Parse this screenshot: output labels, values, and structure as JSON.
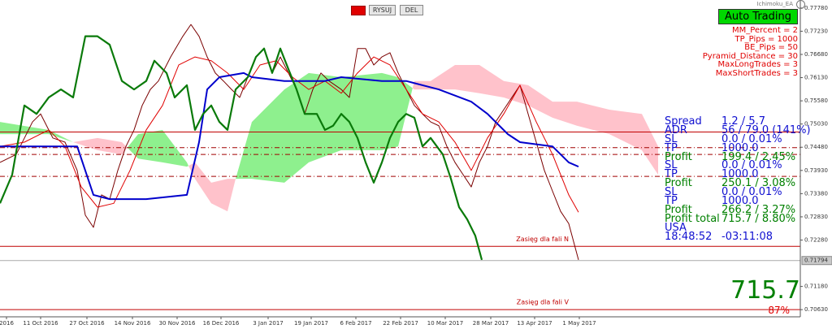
{
  "chart_data": {
    "type": "ichimoku",
    "xlim": [
      0,
      197
    ],
    "ylim": [
      0.7046,
      0.7797
    ],
    "xticks": [
      {
        "value": 1.6,
        "label": "2016"
      },
      {
        "value": 10,
        "label": "11 Oct 2016"
      },
      {
        "value": 21.4,
        "label": "27 Oct 2016"
      },
      {
        "value": 32.6,
        "label": "14 Nov 2016"
      },
      {
        "value": 43.6,
        "label": "30 Nov 2016"
      },
      {
        "value": 54.4,
        "label": "16 Dec 2016"
      },
      {
        "value": 66,
        "label": "3 Jan 2017"
      },
      {
        "value": 76.6,
        "label": "19 Jan 2017"
      },
      {
        "value": 87.6,
        "label": "6 Feb 2017"
      },
      {
        "value": 98.6,
        "label": "22 Feb 2017"
      },
      {
        "value": 109.6,
        "label": "10 Mar 2017"
      },
      {
        "value": 120.8,
        "label": "28 Mar 2017"
      },
      {
        "value": 131.6,
        "label": "13 Apr 2017"
      },
      {
        "value": 142.6,
        "label": "1 May 2017"
      }
    ],
    "yticks": [
      {
        "value": 0.7778,
        "label": "0.77780"
      },
      {
        "value": 0.7723,
        "label": "0.77230"
      },
      {
        "value": 0.7668,
        "label": "0.76680"
      },
      {
        "value": 0.7613,
        "label": "0.76130"
      },
      {
        "value": 0.7558,
        "label": "0.75580"
      },
      {
        "value": 0.7503,
        "label": "0.75030"
      },
      {
        "value": 0.7448,
        "label": "0.74480"
      },
      {
        "value": 0.7393,
        "label": "0.73930"
      },
      {
        "value": 0.7338,
        "label": "0.73380"
      },
      {
        "value": 0.7283,
        "label": "0.72830"
      },
      {
        "value": 0.7228,
        "label": "0.72280"
      },
      {
        "value": 0.7118,
        "label": "0.71180"
      },
      {
        "value": 0.7063,
        "label": "0.70630"
      }
    ],
    "current_price": {
      "value": 0.71794,
      "label": "0.71794",
      "color": "#aaaaaa"
    },
    "cloud": {
      "x": [
        0,
        12,
        18,
        24,
        30,
        34,
        40,
        46,
        48,
        52,
        56,
        58,
        62,
        70,
        76,
        84,
        94,
        98,
        102,
        106,
        112,
        118,
        124,
        130,
        136,
        142,
        150,
        158,
        162
      ],
      "span_a": [
        0.7508,
        0.7489,
        0.746,
        0.7441,
        0.7431,
        0.7479,
        0.7489,
        0.7412,
        0.7373,
        0.7315,
        0.7296,
        0.7373,
        0.7508,
        0.7585,
        0.7624,
        0.7614,
        0.7624,
        0.7614,
        0.7585,
        0.7585,
        0.7585,
        0.7576,
        0.7566,
        0.7547,
        0.7518,
        0.7499,
        0.7479,
        0.7441,
        0.7383
      ],
      "span_b": [
        0.7479,
        0.7479,
        0.746,
        0.747,
        0.746,
        0.7421,
        0.7412,
        0.7402,
        0.7412,
        0.7364,
        0.7373,
        0.7373,
        0.7373,
        0.7364,
        0.7412,
        0.7441,
        0.7441,
        0.745,
        0.7605,
        0.7605,
        0.7643,
        0.7643,
        0.7605,
        0.7595,
        0.7556,
        0.7556,
        0.7537,
        0.7527,
        0.745
      ],
      "up_color": "#8ef08e",
      "down_color": "#ffc2cb"
    },
    "series": [
      {
        "color": "#7a0000",
        "x": [
          0,
          4,
          8,
          10,
          13,
          16,
          19,
          21,
          23,
          25,
          27,
          29,
          31,
          33,
          35,
          37,
          39,
          42,
          45,
          47,
          49,
          51,
          53,
          55,
          57,
          59,
          61,
          63,
          65,
          67,
          69,
          71,
          73,
          75,
          77,
          79,
          81,
          84,
          86,
          88,
          90,
          92,
          94,
          96,
          98,
          100,
          102,
          104,
          106,
          108,
          110,
          112,
          114,
          116,
          118,
          120,
          122,
          124,
          126,
          128,
          130,
          132,
          134,
          136,
          138,
          140,
          142.4
        ],
        "values": [
          0.7412,
          0.7431,
          0.7508,
          0.7527,
          0.747,
          0.746,
          0.7393,
          0.7287,
          0.7258,
          0.7335,
          0.7325,
          0.7393,
          0.745,
          0.7489,
          0.7547,
          0.7585,
          0.7605,
          0.7662,
          0.7711,
          0.7739,
          0.7711,
          0.7662,
          0.7624,
          0.7605,
          0.7585,
          0.7566,
          0.7614,
          0.7662,
          0.7682,
          0.7624,
          0.7662,
          0.7624,
          0.7585,
          0.7527,
          0.7585,
          0.7624,
          0.7605,
          0.7585,
          0.7566,
          0.7682,
          0.7682,
          0.7643,
          0.7662,
          0.7672,
          0.7624,
          0.7585,
          0.7547,
          0.7527,
          0.7508,
          0.7499,
          0.745,
          0.7412,
          0.7383,
          0.7354,
          0.7412,
          0.745,
          0.7508,
          0.7537,
          0.7566,
          0.7595,
          0.7527,
          0.746,
          0.7393,
          0.7344,
          0.7296,
          0.7267,
          0.7181
        ]
      },
      {
        "color": "#e00000",
        "x": [
          0,
          6,
          12,
          16,
          20,
          24,
          28,
          32,
          36,
          40,
          44,
          48,
          52,
          56,
          60,
          64,
          68,
          72,
          76,
          80,
          84,
          88,
          92,
          96,
          100,
          104,
          108,
          112,
          116,
          120,
          124,
          128,
          132,
          136,
          140,
          142.4
        ],
        "values": [
          0.745,
          0.746,
          0.7489,
          0.745,
          0.7354,
          0.7306,
          0.7315,
          0.7393,
          0.7489,
          0.7547,
          0.7643,
          0.7662,
          0.7653,
          0.7624,
          0.7585,
          0.7643,
          0.7653,
          0.7614,
          0.7585,
          0.7605,
          0.7576,
          0.7624,
          0.7662,
          0.7643,
          0.7585,
          0.7527,
          0.7508,
          0.746,
          0.7393,
          0.747,
          0.7527,
          0.7595,
          0.7508,
          0.7431,
          0.7335,
          0.7294
        ]
      },
      {
        "color": "#0000cc",
        "x": [
          0,
          19,
          23,
          27,
          36,
          46,
          49,
          51,
          54,
          60,
          62,
          70,
          80,
          84,
          94,
          100,
          108,
          116,
          120,
          125,
          128,
          136,
          140,
          142.4
        ],
        "values": [
          0.745,
          0.745,
          0.7335,
          0.7325,
          0.7325,
          0.7335,
          0.746,
          0.7585,
          0.7614,
          0.7624,
          0.7614,
          0.7605,
          0.7605,
          0.7614,
          0.7605,
          0.7605,
          0.7585,
          0.7556,
          0.7527,
          0.7479,
          0.746,
          0.745,
          0.7412,
          0.7402
        ]
      },
      {
        "color": "#0a7a0a",
        "x": [
          0,
          3,
          6,
          9,
          12,
          15,
          18,
          21,
          24,
          27,
          30,
          33,
          36,
          38,
          41,
          43,
          46,
          48,
          50,
          52,
          54,
          56,
          58,
          61,
          63,
          65,
          67,
          69,
          71,
          73,
          75,
          78,
          80,
          82,
          84,
          86,
          88,
          90,
          92,
          94,
          96,
          98,
          100,
          102,
          104,
          106,
          109,
          111,
          113,
          115,
          117,
          118.6
        ],
        "values": [
          0.7315,
          0.7383,
          0.7547,
          0.7527,
          0.7566,
          0.7585,
          0.7566,
          0.7711,
          0.7711,
          0.7691,
          0.7605,
          0.7585,
          0.7605,
          0.7653,
          0.7624,
          0.7566,
          0.7595,
          0.7489,
          0.7527,
          0.7547,
          0.7508,
          0.7489,
          0.7585,
          0.7614,
          0.7662,
          0.7682,
          0.7624,
          0.7682,
          0.7633,
          0.7585,
          0.7527,
          0.7527,
          0.7489,
          0.7499,
          0.7527,
          0.7508,
          0.747,
          0.7412,
          0.7364,
          0.7412,
          0.747,
          0.7508,
          0.7527,
          0.7518,
          0.745,
          0.747,
          0.7431,
          0.7373,
          0.7306,
          0.7277,
          0.7238,
          0.7181
        ]
      }
    ],
    "hlines": [
      {
        "value": 0.7484,
        "color": "#c00000",
        "dash": false
      },
      {
        "value": 0.7447,
        "color": "#a00000",
        "dash": true
      },
      {
        "value": 0.7431,
        "color": "#a00000",
        "dash": true
      },
      {
        "value": 0.7379,
        "color": "#a00000",
        "dash": true
      },
      {
        "value": 0.7213,
        "color": "#c00000",
        "dash": false,
        "label": "Zasięg dla fali N"
      },
      {
        "value": 0.7063,
        "color": "#c00000",
        "dash": false,
        "label": "Zasięg dla fali V"
      }
    ]
  },
  "toolbar": {
    "draw_button": "RYSUJ",
    "delete_button": "DEL"
  },
  "ea_panel": {
    "name": "Ichimoku_EA",
    "button": "Auto Trading",
    "params": [
      "MM_Percent = 2",
      "TP_Pips = 1000",
      "BE_Pips = 50",
      "Pyramid_Distance = 30",
      "MaxLongTrades = 3",
      "MaxShortTrades = 3"
    ]
  },
  "stats": {
    "rows": [
      {
        "label": "Spread",
        "value": "1.2 / 5.7",
        "color": "#1010d0"
      },
      {
        "label": "ADR",
        "value": "56 / 79.0 (141%)",
        "color": "#1010d0"
      },
      {
        "label": "SL",
        "value": "0.0 / 0.01%",
        "color": "#1010d0"
      },
      {
        "label": "TP",
        "value": "1000.0",
        "color": "#1010d0"
      },
      {
        "label": "Profit",
        "value": "199.4 / 2.45%",
        "color": "#008000"
      },
      {
        "label": "SL",
        "value": "0.0 / 0.01%",
        "color": "#1010d0"
      },
      {
        "label": "TP",
        "value": "1000.0",
        "color": "#1010d0"
      },
      {
        "label": "Profit",
        "value": "250.1 / 3.08%",
        "color": "#008000"
      },
      {
        "label": "SL",
        "value": "0.0 / 0.01%",
        "color": "#1010d0"
      },
      {
        "label": "TP",
        "value": "1000.0",
        "color": "#1010d0"
      },
      {
        "label": "Profit",
        "value": "266.2 / 3.27%",
        "color": "#008000"
      },
      {
        "label": "Profit total",
        "value": "715.7 / 8.80%",
        "color": "#008000"
      },
      {
        "label": "USA",
        "value": "",
        "color": "#1010d0"
      },
      {
        "label": "18:48:52",
        "value": "-03:11:08",
        "color": "#1010d0"
      }
    ],
    "total": "715.7",
    "percent": "87%"
  }
}
